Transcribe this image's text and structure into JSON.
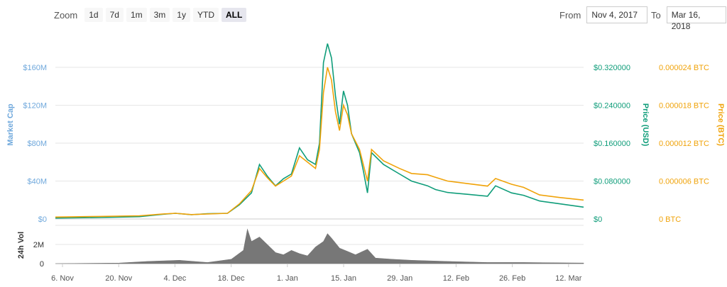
{
  "zoom": {
    "label": "Zoom",
    "buttons": [
      "1d",
      "7d",
      "1m",
      "3m",
      "1y",
      "YTD",
      "ALL"
    ],
    "active": "ALL"
  },
  "range": {
    "from_label": "From",
    "from_value": "Nov 4, 2017",
    "to_label": "To",
    "to_value": "Mar 16, 2018"
  },
  "colors": {
    "market_cap": "#6fa8dc",
    "price_usd": "#0f9d7a",
    "price_btc": "#f0a30a",
    "volume": "#777777"
  },
  "chart_data": {
    "type": "line",
    "x_ticks": [
      "6. Nov",
      "20. Nov",
      "4. Dec",
      "18. Dec",
      "1. Jan",
      "15. Jan",
      "29. Jan",
      "12. Feb",
      "26. Feb",
      "12. Mar"
    ],
    "y_left": {
      "label": "Market Cap",
      "ticks": [
        "$0",
        "$40M",
        "$80M",
        "$120M",
        "$160M"
      ],
      "range": [
        0,
        160
      ]
    },
    "y_usd": {
      "label": "Price (USD)",
      "ticks": [
        "$0",
        "$0.080000",
        "$0.160000",
        "$0.240000",
        "$0.320000"
      ],
      "range": [
        0,
        0.32
      ]
    },
    "y_btc": {
      "label": "Price (BTC)",
      "ticks": [
        "0 BTC",
        "0.000006 BTC",
        "0.000012 BTC",
        "0.000018 BTC",
        "0.000024 BTC"
      ],
      "range": [
        0,
        2.4e-05
      ]
    },
    "volume_axis": {
      "label": "24h Vol",
      "ticks": [
        "0",
        "2M"
      ]
    },
    "x_range": [
      "2017-11-04",
      "2018-03-16"
    ],
    "series": [
      {
        "name": "Price (USD)",
        "axis": "usd",
        "points": [
          [
            "2017-11-04",
            0.002
          ],
          [
            "2017-11-15",
            0.003
          ],
          [
            "2017-11-25",
            0.005
          ],
          [
            "2017-12-01",
            0.01
          ],
          [
            "2017-12-04",
            0.012
          ],
          [
            "2017-12-08",
            0.009
          ],
          [
            "2017-12-12",
            0.011
          ],
          [
            "2017-12-17",
            0.012
          ],
          [
            "2017-12-20",
            0.03
          ],
          [
            "2017-12-23",
            0.055
          ],
          [
            "2017-12-25",
            0.115
          ],
          [
            "2017-12-27",
            0.09
          ],
          [
            "2017-12-29",
            0.07
          ],
          [
            "2017-12-31",
            0.085
          ],
          [
            "2018-01-02",
            0.095
          ],
          [
            "2018-01-04",
            0.15
          ],
          [
            "2018-01-06",
            0.125
          ],
          [
            "2018-01-08",
            0.115
          ],
          [
            "2018-01-09",
            0.16
          ],
          [
            "2018-01-10",
            0.33
          ],
          [
            "2018-01-11",
            0.37
          ],
          [
            "2018-01-12",
            0.34
          ],
          [
            "2018-01-13",
            0.26
          ],
          [
            "2018-01-14",
            0.2
          ],
          [
            "2018-01-15",
            0.27
          ],
          [
            "2018-01-16",
            0.24
          ],
          [
            "2018-01-17",
            0.18
          ],
          [
            "2018-01-19",
            0.14
          ],
          [
            "2018-01-20",
            0.1
          ],
          [
            "2018-01-21",
            0.055
          ],
          [
            "2018-01-22",
            0.14
          ],
          [
            "2018-01-25",
            0.115
          ],
          [
            "2018-01-29",
            0.095
          ],
          [
            "2018-02-01",
            0.08
          ],
          [
            "2018-02-05",
            0.07
          ],
          [
            "2018-02-07",
            0.062
          ],
          [
            "2018-02-10",
            0.056
          ],
          [
            "2018-02-15",
            0.052
          ],
          [
            "2018-02-20",
            0.048
          ],
          [
            "2018-02-22",
            0.07
          ],
          [
            "2018-02-26",
            0.055
          ],
          [
            "2018-03-01",
            0.05
          ],
          [
            "2018-03-05",
            0.038
          ],
          [
            "2018-03-10",
            0.032
          ],
          [
            "2018-03-16",
            0.025
          ]
        ]
      },
      {
        "name": "Price (BTC)",
        "axis": "btc",
        "points": [
          [
            "2017-11-04",
            3e-07
          ],
          [
            "2017-11-15",
            4e-07
          ],
          [
            "2017-11-25",
            5e-07
          ],
          [
            "2017-12-01",
            8e-07
          ],
          [
            "2017-12-04",
            9e-07
          ],
          [
            "2017-12-08",
            7e-07
          ],
          [
            "2017-12-12",
            8e-07
          ],
          [
            "2017-12-17",
            9e-07
          ],
          [
            "2017-12-20",
            2.4e-06
          ],
          [
            "2017-12-23",
            4.5e-06
          ],
          [
            "2017-12-25",
            8e-06
          ],
          [
            "2017-12-27",
            6.5e-06
          ],
          [
            "2017-12-29",
            5.2e-06
          ],
          [
            "2017-12-31",
            6e-06
          ],
          [
            "2018-01-02",
            6.8e-06
          ],
          [
            "2018-01-04",
            1e-05
          ],
          [
            "2018-01-06",
            9e-06
          ],
          [
            "2018-01-08",
            8e-06
          ],
          [
            "2018-01-09",
            1.1e-05
          ],
          [
            "2018-01-10",
            2e-05
          ],
          [
            "2018-01-11",
            2.4e-05
          ],
          [
            "2018-01-12",
            2.2e-05
          ],
          [
            "2018-01-13",
            1.7e-05
          ],
          [
            "2018-01-14",
            1.4e-05
          ],
          [
            "2018-01-15",
            1.8e-05
          ],
          [
            "2018-01-16",
            1.65e-05
          ],
          [
            "2018-01-17",
            1.35e-05
          ],
          [
            "2018-01-19",
            1.1e-05
          ],
          [
            "2018-01-20",
            8.5e-06
          ],
          [
            "2018-01-21",
            6e-06
          ],
          [
            "2018-01-22",
            1.1e-05
          ],
          [
            "2018-01-25",
            9.2e-06
          ],
          [
            "2018-01-29",
            8e-06
          ],
          [
            "2018-02-01",
            7.2e-06
          ],
          [
            "2018-02-05",
            7e-06
          ],
          [
            "2018-02-07",
            6.6e-06
          ],
          [
            "2018-02-10",
            6e-06
          ],
          [
            "2018-02-15",
            5.6e-06
          ],
          [
            "2018-02-20",
            5.2e-06
          ],
          [
            "2018-02-22",
            6.4e-06
          ],
          [
            "2018-02-26",
            5.5e-06
          ],
          [
            "2018-03-01",
            5e-06
          ],
          [
            "2018-03-05",
            3.8e-06
          ],
          [
            "2018-03-10",
            3.4e-06
          ],
          [
            "2018-03-16",
            3e-06
          ]
        ]
      },
      {
        "name": "24h Vol",
        "axis": "volume",
        "points": [
          [
            "2017-11-04",
            0.0
          ],
          [
            "2017-11-20",
            0.05
          ],
          [
            "2017-11-27",
            0.2
          ],
          [
            "2017-12-05",
            0.3
          ],
          [
            "2017-12-12",
            0.1
          ],
          [
            "2017-12-18",
            0.4
          ],
          [
            "2017-12-21",
            1.2
          ],
          [
            "2017-12-22",
            3.1
          ],
          [
            "2017-12-23",
            2.0
          ],
          [
            "2017-12-25",
            2.4
          ],
          [
            "2017-12-27",
            1.7
          ],
          [
            "2017-12-29",
            1.0
          ],
          [
            "2017-12-31",
            0.8
          ],
          [
            "2018-01-02",
            1.2
          ],
          [
            "2018-01-04",
            0.9
          ],
          [
            "2018-01-06",
            0.7
          ],
          [
            "2018-01-08",
            1.5
          ],
          [
            "2018-01-10",
            2.0
          ],
          [
            "2018-01-11",
            2.7
          ],
          [
            "2018-01-12",
            2.3
          ],
          [
            "2018-01-14",
            1.4
          ],
          [
            "2018-01-16",
            1.1
          ],
          [
            "2018-01-18",
            0.8
          ],
          [
            "2018-01-21",
            1.3
          ],
          [
            "2018-01-23",
            0.5
          ],
          [
            "2018-01-27",
            0.4
          ],
          [
            "2018-02-01",
            0.3
          ],
          [
            "2018-02-10",
            0.2
          ],
          [
            "2018-02-20",
            0.1
          ],
          [
            "2018-03-01",
            0.1
          ],
          [
            "2018-03-16",
            0.05
          ]
        ]
      }
    ],
    "grid": true,
    "legend": "none"
  }
}
